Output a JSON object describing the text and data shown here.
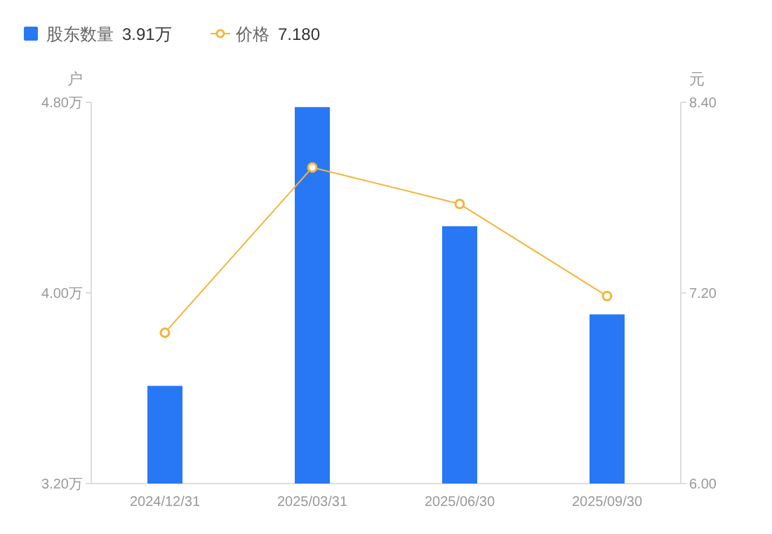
{
  "chart_data": {
    "type": "bar",
    "categories": [
      "2024/12/31",
      "2025/03/31",
      "2025/06/30",
      "2025/09/30"
    ],
    "series": [
      {
        "name": "股东数量",
        "color": "#2878f5",
        "values": [
          3.61,
          4.78,
          4.28,
          3.91
        ]
      },
      {
        "name": "价格",
        "type": "line",
        "axis": "y2",
        "color": "#f5b53a",
        "values": [
          6.95,
          7.99,
          7.76,
          7.18
        ]
      }
    ],
    "ylabel": "户",
    "y2label": "元",
    "ylim": [
      3.2,
      4.8
    ],
    "yticks": [
      {
        "value": 3.2,
        "label": "3.20万"
      },
      {
        "value": 4.0,
        "label": "4.00万"
      },
      {
        "value": 4.8,
        "label": "4.80万"
      }
    ],
    "y2lim": [
      6,
      8.4
    ],
    "y2ticks": [
      {
        "value": 6,
        "label": "6.00"
      },
      {
        "value": 7.2,
        "label": "7.20"
      },
      {
        "value": 8.4,
        "label": "8.40"
      }
    ],
    "annotations": [
      "3.91万",
      "7.180"
    ],
    "legend": "top left",
    "marker": "circle",
    "grid": false
  }
}
